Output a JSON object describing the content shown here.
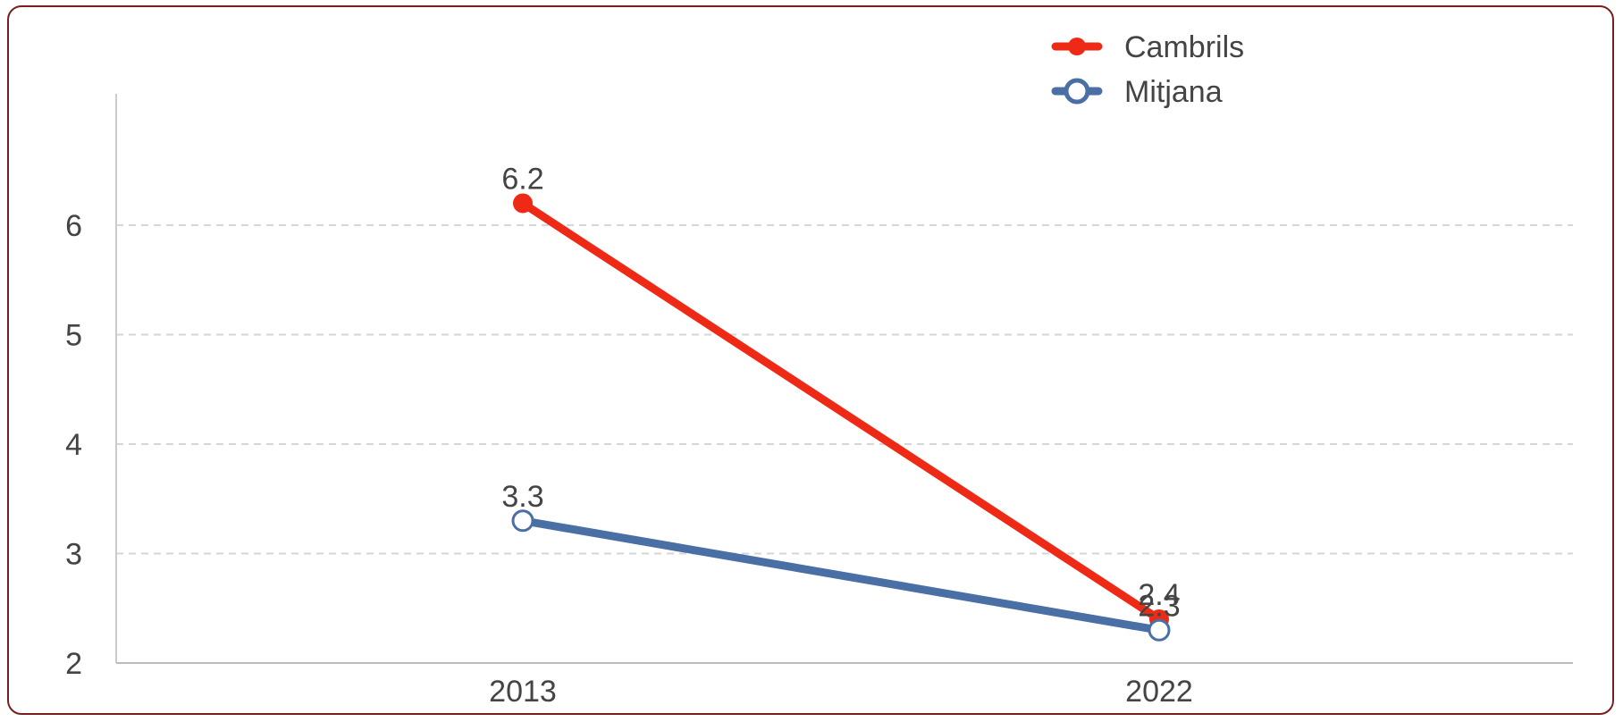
{
  "chart_data": {
    "type": "line",
    "categories": [
      "2013",
      "2022"
    ],
    "series": [
      {
        "name": "Cambrils",
        "values": [
          6.2,
          2.4
        ],
        "color": "#ee2a16",
        "labels": [
          "6.2",
          "2.4"
        ],
        "marker": "filled-circle"
      },
      {
        "name": "Mitjana",
        "values": [
          3.3,
          2.3
        ],
        "color": "#4a6fa5",
        "labels": [
          "3.3",
          "2.3"
        ],
        "marker": "hollow-circle"
      }
    ],
    "y_ticks": [
      "2",
      "3",
      "4",
      "5",
      "6"
    ],
    "ylim": [
      2,
      7
    ],
    "grid": "horizontal-dashed",
    "legend_position": "top-right"
  }
}
